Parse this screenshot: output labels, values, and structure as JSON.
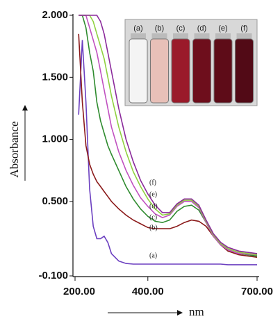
{
  "chart_data": {
    "type": "line",
    "y_label": "Absorbance",
    "x_label": "nm",
    "x": [
      210,
      220,
      230,
      240,
      250,
      260,
      270,
      280,
      290,
      300,
      320,
      340,
      360,
      380,
      400,
      420,
      440,
      460,
      480,
      500,
      520,
      540,
      560,
      580,
      600,
      620,
      650,
      700
    ],
    "series": [
      {
        "name": "(a)",
        "color": "#6b3fc0",
        "values": [
          1.2,
          1.8,
          1.3,
          0.6,
          0.3,
          0.2,
          0.2,
          0.22,
          0.17,
          0.08,
          0.02,
          0.0,
          -0.005,
          -0.005,
          -0.005,
          -0.005,
          -0.005,
          -0.005,
          -0.005,
          -0.005,
          -0.005,
          -0.005,
          -0.005,
          -0.005,
          -0.005,
          -0.01,
          -0.01,
          -0.01
        ]
      },
      {
        "name": "(b)",
        "color": "#8b1a1a",
        "values": [
          1.85,
          1.3,
          0.95,
          0.8,
          0.72,
          0.66,
          0.62,
          0.58,
          0.54,
          0.5,
          0.44,
          0.39,
          0.35,
          0.32,
          0.29,
          0.28,
          0.28,
          0.28,
          0.3,
          0.33,
          0.35,
          0.34,
          0.3,
          0.22,
          0.15,
          0.1,
          0.07,
          0.05
        ]
      },
      {
        "name": "(c)",
        "color": "#2e8b2e",
        "values": [
          2.0,
          2.0,
          1.9,
          1.7,
          1.55,
          1.3,
          1.15,
          1.05,
          0.95,
          0.88,
          0.75,
          0.62,
          0.52,
          0.44,
          0.38,
          0.34,
          0.33,
          0.35,
          0.42,
          0.46,
          0.47,
          0.43,
          0.33,
          0.22,
          0.15,
          0.11,
          0.08,
          0.06
        ]
      },
      {
        "name": "(d)",
        "color": "#c050c0",
        "values": [
          2.0,
          2.0,
          2.0,
          1.9,
          1.8,
          1.7,
          1.55,
          1.4,
          1.25,
          1.1,
          0.9,
          0.75,
          0.63,
          0.53,
          0.46,
          0.4,
          0.37,
          0.39,
          0.46,
          0.5,
          0.5,
          0.45,
          0.33,
          0.22,
          0.15,
          0.11,
          0.08,
          0.07
        ]
      },
      {
        "name": "(e)",
        "color": "#8fd13f",
        "values": [
          2.0,
          2.0,
          2.0,
          2.0,
          1.95,
          1.85,
          1.75,
          1.65,
          1.5,
          1.35,
          1.1,
          0.9,
          0.74,
          0.62,
          0.52,
          0.44,
          0.39,
          0.4,
          0.47,
          0.51,
          0.51,
          0.46,
          0.34,
          0.23,
          0.16,
          0.12,
          0.09,
          0.07
        ]
      },
      {
        "name": "(f)",
        "color": "#8b2a9b",
        "values": [
          2.0,
          2.0,
          2.0,
          2.0,
          2.0,
          2.0,
          1.95,
          1.85,
          1.7,
          1.55,
          1.25,
          1.0,
          0.82,
          0.67,
          0.56,
          0.47,
          0.41,
          0.41,
          0.48,
          0.52,
          0.52,
          0.47,
          0.35,
          0.24,
          0.17,
          0.13,
          0.1,
          0.08
        ]
      }
    ],
    "xlim": [
      200,
      700
    ],
    "ylim": [
      -0.1,
      2.0
    ],
    "xticks": [
      {
        "value": 200,
        "label": "200.00"
      },
      {
        "value": 400,
        "label": "400.00"
      },
      {
        "value": 700,
        "label": "700.00"
      }
    ],
    "yticks": [
      {
        "value": -0.1,
        "label": "-0.100"
      },
      {
        "value": 0.5,
        "label": "0.500"
      },
      {
        "value": 1.0,
        "label": "1.000"
      },
      {
        "value": 1.5,
        "label": "1.500"
      },
      {
        "value": 2.0,
        "label": "2.000"
      }
    ]
  }
}
